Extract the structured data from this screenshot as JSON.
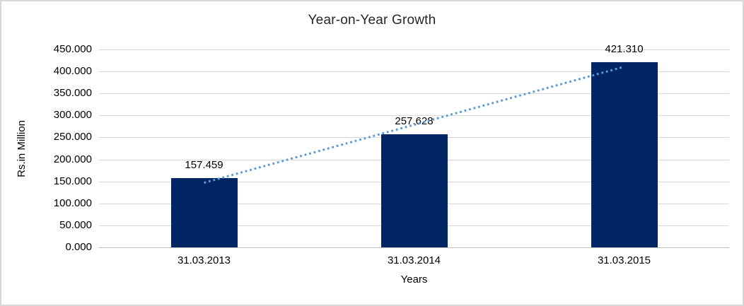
{
  "chart_data": {
    "type": "bar",
    "title": "Year-on-Year Growth",
    "xlabel": "Years",
    "ylabel": "Rs.in Million",
    "categories": [
      "31.03.2013",
      "31.03.2014",
      "31.03.2015"
    ],
    "values": [
      157.459,
      257.628,
      421.31
    ],
    "value_labels": [
      "157.459",
      "257.628",
      "421.310"
    ],
    "ylim": [
      0,
      450
    ],
    "ytick_step": 50,
    "ytick_labels": [
      "0.000",
      "50.000",
      "100.000",
      "150.000",
      "200.000",
      "250.000",
      "300.000",
      "350.000",
      "400.000",
      "450.000"
    ],
    "grid": true,
    "legend": "none",
    "trendline": {
      "type": "linear",
      "style": "dotted"
    }
  },
  "colors": {
    "bar": "#022563",
    "trendline": "#5B9BD5",
    "gridline": "#D9D9D9",
    "axis_line": "#BFBFBF",
    "text": "#000000",
    "title_text": "#262626",
    "frame_border": "#D8D8D8",
    "background": "#FFFFFF"
  }
}
